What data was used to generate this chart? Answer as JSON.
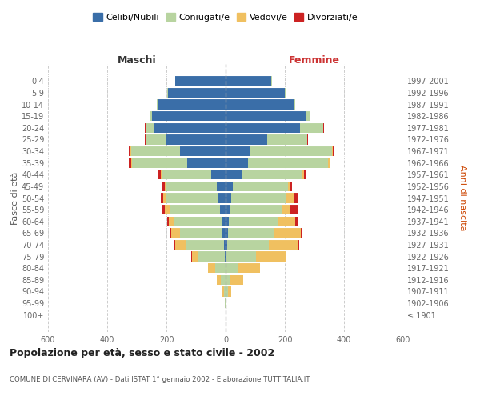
{
  "age_groups": [
    "100+",
    "95-99",
    "90-94",
    "85-89",
    "80-84",
    "75-79",
    "70-74",
    "65-69",
    "60-64",
    "55-59",
    "50-54",
    "45-49",
    "40-44",
    "35-39",
    "30-34",
    "25-29",
    "20-24",
    "15-19",
    "10-14",
    "5-9",
    "0-4"
  ],
  "birth_years": [
    "≤ 1901",
    "1902-1906",
    "1907-1911",
    "1912-1916",
    "1917-1921",
    "1922-1926",
    "1927-1931",
    "1932-1936",
    "1937-1941",
    "1942-1946",
    "1947-1951",
    "1952-1956",
    "1957-1961",
    "1962-1966",
    "1967-1971",
    "1972-1976",
    "1977-1981",
    "1982-1986",
    "1987-1991",
    "1992-1996",
    "1997-2001"
  ],
  "male": {
    "celibi": [
      0,
      0,
      0,
      0,
      0,
      3,
      5,
      10,
      12,
      20,
      25,
      30,
      50,
      130,
      155,
      200,
      240,
      250,
      230,
      195,
      170
    ],
    "coniugati": [
      1,
      2,
      5,
      15,
      35,
      90,
      130,
      145,
      160,
      170,
      175,
      170,
      165,
      185,
      165,
      70,
      30,
      5,
      2,
      1,
      0
    ],
    "vedovi": [
      0,
      1,
      5,
      15,
      25,
      20,
      35,
      30,
      20,
      15,
      10,
      5,
      5,
      5,
      2,
      1,
      1,
      0,
      0,
      0,
      0
    ],
    "divorziati": [
      0,
      0,
      0,
      0,
      0,
      3,
      3,
      3,
      5,
      8,
      10,
      10,
      10,
      8,
      5,
      3,
      2,
      0,
      0,
      0,
      0
    ]
  },
  "female": {
    "nubili": [
      0,
      0,
      0,
      0,
      0,
      3,
      5,
      8,
      10,
      15,
      20,
      25,
      55,
      75,
      85,
      140,
      250,
      270,
      230,
      200,
      155
    ],
    "coniugate": [
      1,
      2,
      8,
      15,
      40,
      100,
      140,
      155,
      165,
      175,
      185,
      185,
      205,
      270,
      275,
      135,
      80,
      15,
      5,
      2,
      1
    ],
    "vedove": [
      0,
      2,
      10,
      45,
      75,
      100,
      100,
      90,
      60,
      30,
      25,
      10,
      5,
      5,
      3,
      2,
      1,
      0,
      0,
      0,
      0
    ],
    "divorziate": [
      0,
      0,
      0,
      0,
      0,
      3,
      3,
      5,
      8,
      25,
      12,
      5,
      5,
      3,
      3,
      2,
      1,
      0,
      0,
      0,
      0
    ]
  },
  "colors": {
    "celibi": "#3a6ea8",
    "coniugati": "#b8d4a0",
    "vedovi": "#f0c060",
    "divorziati": "#cc2222"
  },
  "title": "Popolazione per età, sesso e stato civile - 2002",
  "subtitle": "COMUNE DI CERVINARA (AV) - Dati ISTAT 1° gennaio 2002 - Elaborazione TUTTITALIA.IT",
  "ylabel_left": "Fasce di età",
  "ylabel_right": "Anni di nascita",
  "xlabel_maschi": "Maschi",
  "xlabel_femmine": "Femmine",
  "legend_labels": [
    "Celibi/Nubili",
    "Coniugati/e",
    "Vedovi/e",
    "Divorziati/e"
  ],
  "xlim": 600,
  "background_color": "#ffffff",
  "grid_color": "#cccccc"
}
